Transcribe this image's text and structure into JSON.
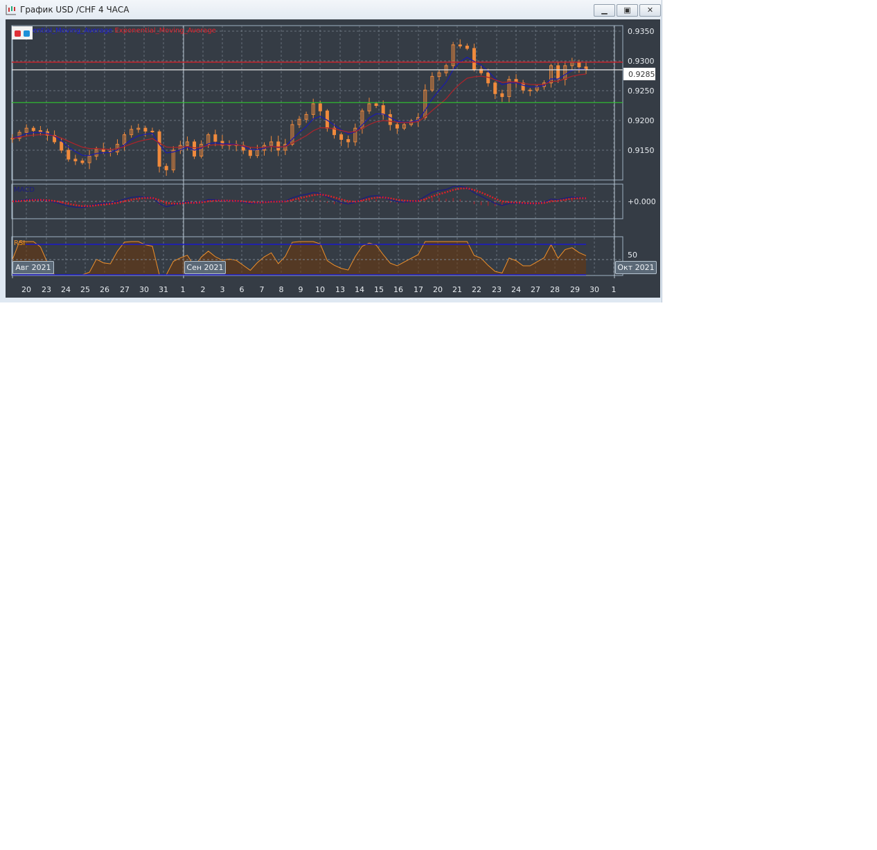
{
  "window": {
    "title": "График USD /CHF  4 ЧАСА",
    "buttons": [
      "minimize",
      "restore",
      "close"
    ]
  },
  "legend": {
    "ma1": "ential_Moving_Average",
    "ma2": "Exponential_Moving_Average",
    "ma1_color": "#1c1cd8",
    "ma2_color": "#e0202a"
  },
  "colors": {
    "background": "#353c45",
    "candle": "#f08a3c",
    "ema_fast": "#1c1ca8",
    "ema_slow": "#a8242c",
    "level_red": "#c8262e",
    "level_green": "#2ec82e",
    "current": "#e8e8e8",
    "rsi": "#f0902a",
    "macd": "#1c1c80",
    "signal": "#e0202a"
  },
  "chart_data": [
    {
      "type": "candlestick",
      "title": "",
      "price_axis": {
        "ticks": [
          "0.9350",
          "0.9300",
          "0.9250",
          "0.9200",
          "0.9150"
        ],
        "ylim": [
          0.9105,
          0.936
        ]
      },
      "current_price": "0.9285",
      "levels": {
        "red": 0.9298,
        "green": 0.923
      },
      "overlays": [
        "Exponential_Moving_Average",
        "Exponential_Moving_Average"
      ],
      "closes": [
        0.917,
        0.918,
        0.9187,
        0.9183,
        0.9181,
        0.9175,
        0.9164,
        0.915,
        0.9135,
        0.9132,
        0.9129,
        0.914,
        0.9152,
        0.9148,
        0.9147,
        0.916,
        0.9176,
        0.9185,
        0.9187,
        0.9182,
        0.9181,
        0.9123,
        0.9117,
        0.915,
        0.9158,
        0.9164,
        0.914,
        0.916,
        0.9176,
        0.9165,
        0.9158,
        0.916,
        0.9158,
        0.915,
        0.9141,
        0.915,
        0.9158,
        0.9164,
        0.915,
        0.916,
        0.9193,
        0.9202,
        0.921,
        0.9228,
        0.9216,
        0.9187,
        0.9176,
        0.9168,
        0.9164,
        0.9187,
        0.9216,
        0.9228,
        0.9225,
        0.921,
        0.9193,
        0.9187,
        0.9193,
        0.9199,
        0.9205,
        0.9251,
        0.9274,
        0.928,
        0.9292,
        0.9327,
        0.9325,
        0.9321,
        0.9286,
        0.928,
        0.9263,
        0.9245,
        0.924,
        0.9269,
        0.9263,
        0.9251,
        0.9251,
        0.9257,
        0.9263,
        0.9292,
        0.9269,
        0.9292,
        0.9298,
        0.929,
        0.9285
      ]
    },
    {
      "type": "line",
      "title": "MACD",
      "zero_label": "+0.000"
    },
    {
      "type": "area",
      "title": "RSI",
      "levels": [
        70,
        30
      ],
      "mid_label": "50"
    }
  ],
  "x_axis": {
    "days": [
      "20",
      "23",
      "24",
      "25",
      "26",
      "27",
      "30",
      "31",
      "1",
      "2",
      "3",
      "6",
      "7",
      "8",
      "9",
      "10",
      "13",
      "14",
      "15",
      "16",
      "17",
      "20",
      "21",
      "22",
      "23",
      "24",
      "27",
      "28",
      "29",
      "30",
      "1"
    ],
    "months": [
      "Авг 2021",
      "Сен 2021",
      "Окт 2021"
    ]
  }
}
